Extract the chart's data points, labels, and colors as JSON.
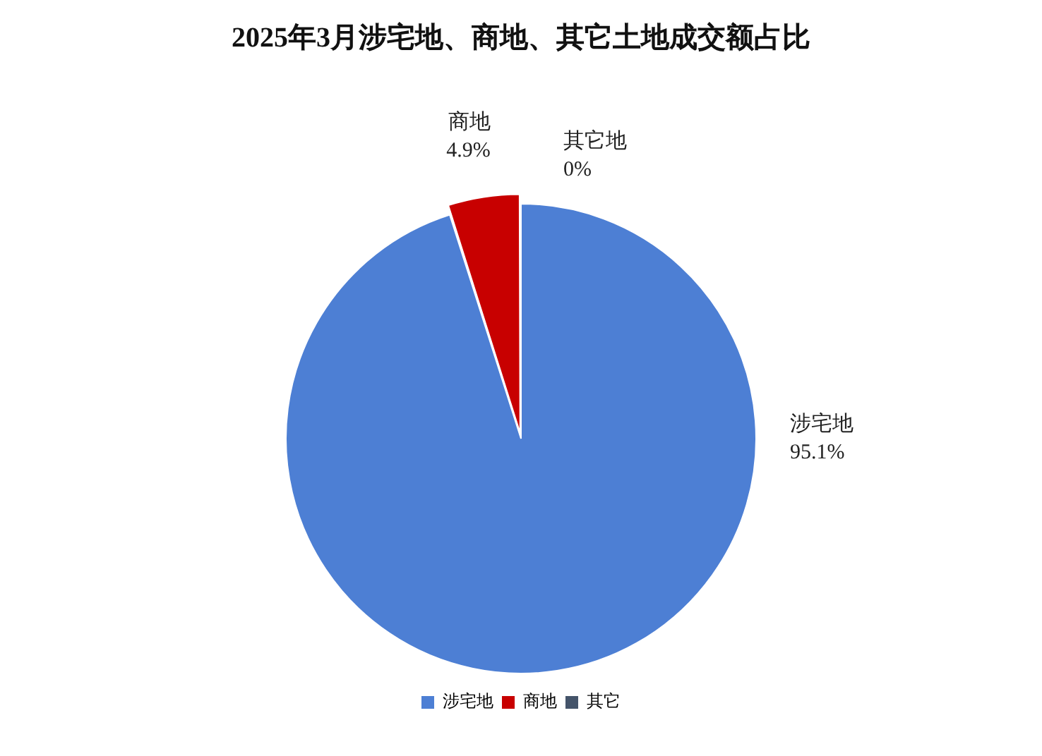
{
  "chart_data": {
    "type": "pie",
    "title": "2025年3月涉宅地、商地、其它土地成交额占比",
    "categories": [
      "涉宅地",
      "商地",
      "其它"
    ],
    "values": [
      95.1,
      4.9,
      0
    ],
    "value_labels": [
      "涉宅地\n95.1%",
      "商地\n4.9%",
      "其它地\n0%"
    ],
    "colors": [
      "#4d7fd4",
      "#c80000",
      "#44546a"
    ],
    "legend": "bottom"
  }
}
